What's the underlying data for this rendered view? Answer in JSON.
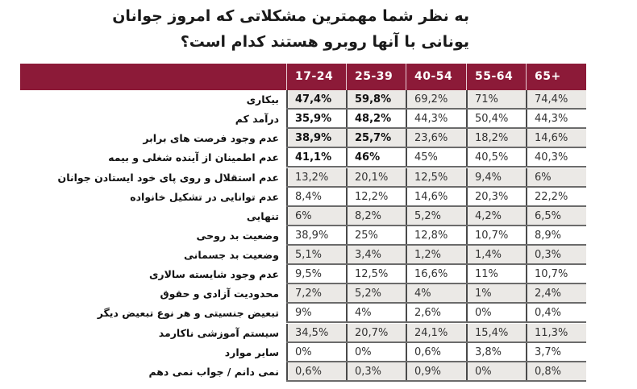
{
  "title": {
    "line1": "به نظر شما مهمترین مشکلاتی که امروز جوانان",
    "line2": "یونانی با آنها روبرو هستند کدام است؟"
  },
  "table": {
    "header_color": "#8c1a38",
    "columns": [
      "17-24",
      "25-39",
      "40-54",
      "55-64",
      "65+"
    ],
    "rows": [
      {
        "label": "بیکاری",
        "values": [
          "47,4%",
          "59,8%",
          "69,2%",
          "71%",
          "74,4%"
        ],
        "bold": [
          true,
          true,
          false,
          false,
          false
        ]
      },
      {
        "label": "درآمد کم",
        "values": [
          "35,9%",
          "48,2%",
          "44,3%",
          "50,4%",
          "44,3%"
        ],
        "bold": [
          true,
          true,
          false,
          false,
          false
        ]
      },
      {
        "label": "عدم وجود فرصت های برابر",
        "values": [
          "38,9%",
          "25,7%",
          "23,6%",
          "18,2%",
          "14,6%"
        ],
        "bold": [
          true,
          true,
          false,
          false,
          false
        ]
      },
      {
        "label": "عدم اطمینان از آینده شغلی و بیمه",
        "values": [
          "41,1%",
          "46%",
          "45%",
          "40,5%",
          "40,3%"
        ],
        "bold": [
          true,
          true,
          false,
          false,
          false
        ]
      },
      {
        "label": "عدم استقلال و روی پای خود ایستادن جوانان",
        "values": [
          "13,2%",
          "20,1%",
          "12,5%",
          "9,4%",
          "6%"
        ],
        "bold": [
          false,
          false,
          false,
          false,
          false
        ]
      },
      {
        "label": "عدم توانایی در تشکیل خانواده",
        "values": [
          "8,4%",
          "12,2%",
          "14,6%",
          "20,3%",
          "22,2%"
        ],
        "bold": [
          false,
          false,
          false,
          false,
          false
        ]
      },
      {
        "label": "تنهایی",
        "values": [
          "6%",
          "8,2%",
          "5,2%",
          "4,2%",
          "6,5%"
        ],
        "bold": [
          false,
          false,
          false,
          false,
          false
        ]
      },
      {
        "label": "وضعیت بد روحی",
        "values": [
          "38,9%",
          "25%",
          "12,8%",
          "10,7%",
          "8,9%"
        ],
        "bold": [
          false,
          false,
          false,
          false,
          false
        ]
      },
      {
        "label": "وضعیت بد جسمانی",
        "values": [
          "5,1%",
          "3,4%",
          "1,2%",
          "1,4%",
          "0,3%"
        ],
        "bold": [
          false,
          false,
          false,
          false,
          false
        ]
      },
      {
        "label": "عدم وجود شایسته سالاری",
        "values": [
          "9,5%",
          "12,5%",
          "16,6%",
          "11%",
          "10,7%"
        ],
        "bold": [
          false,
          false,
          false,
          false,
          false
        ]
      },
      {
        "label": "محدودیت آزادی و حقوق",
        "values": [
          "7,2%",
          "5,2%",
          "4%",
          "1%",
          "2,4%"
        ],
        "bold": [
          false,
          false,
          false,
          false,
          false
        ]
      },
      {
        "label": "تبعیض جنسیتی و هر نوع تبعیض دیگر",
        "values": [
          "9%",
          "4%",
          "2,6%",
          "0%",
          "0,4%"
        ],
        "bold": [
          false,
          false,
          false,
          false,
          false
        ]
      },
      {
        "label": "سیستم آموزشی ناکارمد",
        "values": [
          "34,5%",
          "20,7%",
          "24,1%",
          "15,4%",
          "11,3%"
        ],
        "bold": [
          false,
          false,
          false,
          false,
          false
        ]
      },
      {
        "label": "سایر موارد",
        "values": [
          "0%",
          "0%",
          "0,6%",
          "3,8%",
          "3,7%"
        ],
        "bold": [
          false,
          false,
          false,
          false,
          false
        ]
      },
      {
        "label": "نمی دانم / جواب نمی دهم",
        "values": [
          "0,6%",
          "0,3%",
          "0,9%",
          "0%",
          "0,8%"
        ],
        "bold": [
          false,
          false,
          false,
          false,
          false
        ]
      }
    ]
  }
}
